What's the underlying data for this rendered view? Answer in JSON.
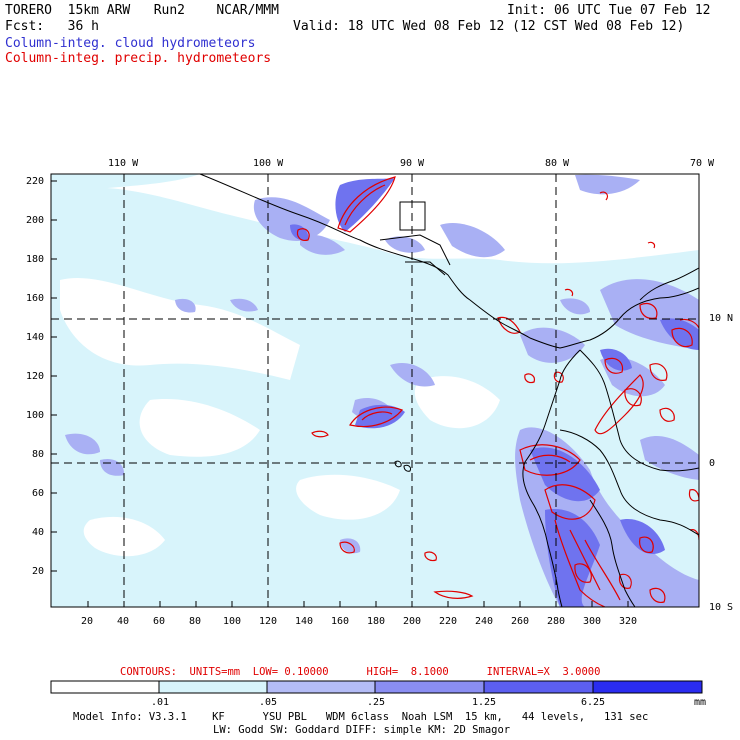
{
  "header": {
    "model": "TORERO  15km ARW   Run2    NCAR/MMM",
    "fcst": "Fcst:   36 h",
    "init": "Init: 06 UTC Tue 07 Feb 12",
    "valid": "Valid: 18 UTC Wed 08 Feb 12 (12 CST Wed 08 Feb 12)",
    "field_cloud": "Column-integ. cloud hydrometeors",
    "field_precip": "Column-integ. precip. hydrometeors"
  },
  "colors": {
    "cloud_label": "#3030d0",
    "precip_label": "#e00000",
    "shade_1": "#d8f4fb",
    "shade_2": "#b4bcf6",
    "shade_3": "#8a8ef2",
    "shade_4": "#5c5ff0",
    "shade_5": "#2a2cf0"
  },
  "map": {
    "lon_labels": [
      "110 W",
      "100 W",
      "90 W",
      "80 W",
      "70 W"
    ],
    "lat_labels": [
      "10 N",
      "0",
      "10 S"
    ],
    "x_ticks": [
      "20",
      "40",
      "60",
      "80",
      "100",
      "120",
      "140",
      "160",
      "180",
      "200",
      "220",
      "240",
      "260",
      "280",
      "300",
      "320"
    ],
    "y_ticks": [
      "220",
      "200",
      "180",
      "160",
      "140",
      "120",
      "100",
      "80",
      "60",
      "40",
      "20"
    ]
  },
  "contours_line": "CONTOURS:  UNITS=mm  LOW= 0.10000      HIGH=  8.1000      INTERVAL=X  3.0000",
  "colorbar": {
    "tick_labels": [
      ".01",
      ".05",
      ".25",
      "1.25",
      "6.25"
    ],
    "units": "mm"
  },
  "model_info": {
    "line1": "Model Info: V3.3.1    KF      YSU PBL   WDM 6class  Noah LSM  15 km,   44 levels,   131 sec",
    "line2": "LW: Godd SW: Goddard DIFF: simple KM: 2D Smagor"
  }
}
